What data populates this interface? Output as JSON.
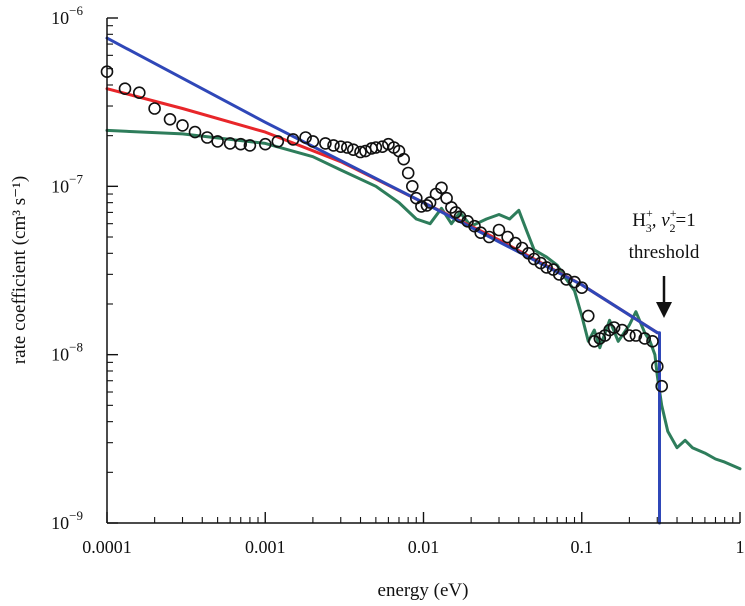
{
  "chart_data": {
    "type": "line",
    "title": "",
    "xlabel": "energy (eV)",
    "ylabel": "rate coefficient (cm³ s⁻¹)",
    "x_scale": "log",
    "y_scale": "log",
    "xlim": [
      0.0001,
      1
    ],
    "ylim": [
      1e-09,
      1e-06
    ],
    "grid": false,
    "legend": "none",
    "x_ticks": [
      "0.0001",
      "0.001",
      "0.01",
      "0.1",
      "1"
    ],
    "y_ticks": [
      {
        "base": "10",
        "exp": "−6",
        "value": 1e-06
      },
      {
        "base": "10",
        "exp": "−7",
        "value": 1e-07
      },
      {
        "base": "10",
        "exp": "−8",
        "value": 1e-08
      },
      {
        "base": "10",
        "exp": "−9",
        "value": 1e-09
      }
    ],
    "annotation": {
      "line1_base": "H",
      "line1_sup1": "+",
      "line1_sub1": "3",
      "line1_mid": ", v",
      "line1_sup2": "+",
      "line1_sub2": "2",
      "line1_end": "=1",
      "line2": "threshold",
      "arrow_x": 0.31,
      "arrow_y": 1.5e-08
    },
    "series": [
      {
        "color": "#2f47b8",
        "style": "line",
        "x": [
          0.0001,
          0.001,
          0.01,
          0.1,
          0.3,
          0.31,
          0.31
        ],
        "y": [
          7.6e-07,
          2.4e-07,
          8e-08,
          2.6e-08,
          1.35e-08,
          1.35e-08,
          1e-09
        ]
      },
      {
        "color": "#e8262a",
        "style": "line",
        "x": [
          0.0001,
          0.0003,
          0.001,
          0.003,
          0.01,
          0.03,
          0.1,
          0.3
        ],
        "y": [
          3.8e-07,
          2.9e-07,
          2.1e-07,
          1.4e-07,
          8e-08,
          4.8e-08,
          2.6e-08,
          1.35e-08
        ]
      },
      {
        "color": "#2e7d5b",
        "style": "line",
        "x": [
          0.0001,
          0.0003,
          0.001,
          0.002,
          0.003,
          0.005,
          0.007,
          0.009,
          0.011,
          0.013,
          0.015,
          0.017,
          0.02,
          0.025,
          0.03,
          0.035,
          0.04,
          0.045,
          0.05,
          0.06,
          0.07,
          0.08,
          0.09,
          0.1,
          0.11,
          0.12,
          0.13,
          0.15,
          0.17,
          0.2,
          0.22,
          0.25,
          0.27,
          0.29,
          0.3,
          0.32,
          0.35,
          0.4,
          0.45,
          0.5,
          0.6,
          0.7,
          0.8,
          1.0
        ],
        "y": [
          2.15e-07,
          2.05e-07,
          1.8e-07,
          1.5e-07,
          1.25e-07,
          1e-07,
          8e-08,
          6.4e-08,
          6e-08,
          7.4e-08,
          6e-08,
          7e-08,
          5.8e-08,
          6.4e-08,
          6.8e-08,
          6.4e-08,
          7.2e-08,
          5.4e-08,
          4.2e-08,
          3.8e-08,
          3.4e-08,
          2.8e-08,
          2.4e-08,
          1.7e-08,
          1.2e-08,
          1.4e-08,
          1.1e-08,
          1.6e-08,
          1.2e-08,
          1.5e-08,
          1.8e-08,
          1.35e-08,
          1.2e-08,
          1e-08,
          7.5e-09,
          5e-09,
          3.5e-09,
          2.8e-09,
          3.1e-09,
          2.8e-09,
          2.6e-09,
          2.4e-09,
          2.3e-09,
          2.1e-09
        ]
      },
      {
        "color": "#111111",
        "style": "markers",
        "marker": "open-circle",
        "x": [
          0.0001,
          0.00013,
          0.00016,
          0.0002,
          0.00025,
          0.0003,
          0.00036,
          0.00043,
          0.0005,
          0.0006,
          0.0007,
          0.0008,
          0.001,
          0.0012,
          0.0015,
          0.0018,
          0.002,
          0.0024,
          0.0027,
          0.003,
          0.0033,
          0.0036,
          0.004,
          0.0043,
          0.0047,
          0.005,
          0.0055,
          0.006,
          0.0065,
          0.007,
          0.0075,
          0.008,
          0.0085,
          0.009,
          0.0097,
          0.0105,
          0.011,
          0.012,
          0.013,
          0.014,
          0.015,
          0.016,
          0.017,
          0.019,
          0.021,
          0.023,
          0.026,
          0.03,
          0.034,
          0.038,
          0.042,
          0.046,
          0.05,
          0.055,
          0.06,
          0.066,
          0.072,
          0.08,
          0.09,
          0.1,
          0.11,
          0.12,
          0.13,
          0.14,
          0.15,
          0.16,
          0.18,
          0.2,
          0.22,
          0.25,
          0.28,
          0.3,
          0.32
        ],
        "y": [
          4.8e-07,
          3.8e-07,
          3.6e-07,
          2.9e-07,
          2.5e-07,
          2.3e-07,
          2.1e-07,
          1.95e-07,
          1.85e-07,
          1.8e-07,
          1.78e-07,
          1.75e-07,
          1.78e-07,
          1.85e-07,
          1.9e-07,
          1.95e-07,
          1.85e-07,
          1.8e-07,
          1.75e-07,
          1.72e-07,
          1.7e-07,
          1.65e-07,
          1.6e-07,
          1.62e-07,
          1.68e-07,
          1.7e-07,
          1.72e-07,
          1.78e-07,
          1.7e-07,
          1.62e-07,
          1.45e-07,
          1.2e-07,
          1e-07,
          8.5e-08,
          7.6e-08,
          7.7e-08,
          8e-08,
          9e-08,
          9.8e-08,
          8.5e-08,
          7.5e-08,
          7e-08,
          6.6e-08,
          6.2e-08,
          5.8e-08,
          5.3e-08,
          5e-08,
          5.5e-08,
          5e-08,
          4.6e-08,
          4.3e-08,
          4e-08,
          3.7e-08,
          3.5e-08,
          3.3e-08,
          3.2e-08,
          3e-08,
          2.8e-08,
          2.7e-08,
          2.5e-08,
          1.7e-08,
          1.2e-08,
          1.25e-08,
          1.3e-08,
          1.4e-08,
          1.45e-08,
          1.4e-08,
          1.3e-08,
          1.3e-08,
          1.25e-08,
          1.2e-08,
          8.5e-09,
          6.5e-09
        ]
      }
    ]
  }
}
